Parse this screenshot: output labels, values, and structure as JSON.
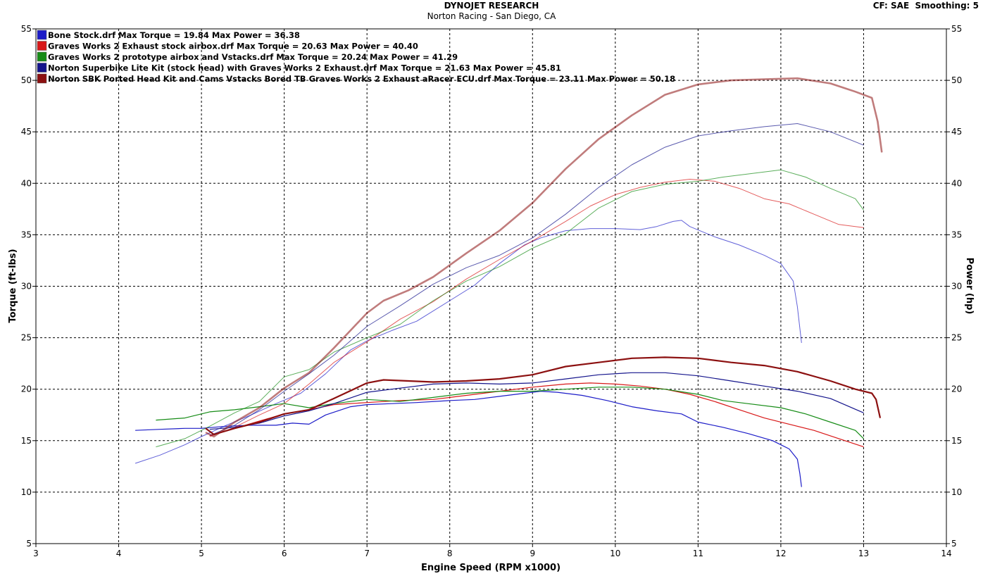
{
  "header": {
    "title": "DYNOJET RESEARCH",
    "subtitle": "Norton Racing - San Diego, CA",
    "cf": "CF: SAE",
    "smoothing": "Smoothing: 5"
  },
  "colors": {
    "blue": "#1c1cc8",
    "red": "#d81818",
    "green": "#168c16",
    "navy": "#14148c",
    "maroon": "#8c1010",
    "plot_bg": "#ffffff",
    "grid": "#000000"
  },
  "chart_data": {
    "type": "line",
    "xlabel": "Engine Speed (RPM x1000)",
    "ylabel": "Torque (ft-lbs)",
    "y2label": "Power (hp)",
    "xlim": [
      3,
      14
    ],
    "ylim": [
      5,
      55
    ],
    "y2lim": [
      5,
      55
    ],
    "xticks": [
      3,
      4,
      5,
      6,
      7,
      8,
      9,
      10,
      11,
      12,
      13,
      14
    ],
    "yticks": [
      5,
      10,
      15,
      20,
      25,
      30,
      35,
      40,
      45,
      50,
      55
    ],
    "grid": true,
    "legend_position": "top-left",
    "legend": [
      "Bone Stock.drf Max Torque = 19.84 Max Power = 36.38",
      "Graves Works 2 Exhaust stock airbox.drf Max Torque = 20.63 Max Power = 40.40",
      "Graves Works 2 prototype airbox and Vstacks.drf Max Torque = 20.24 Max Power = 41.29",
      "Norton Superbike Lite Kit (stock head) with Graves Works 2 Exhaust.drf Max Torque = 21.63 Max Power = 45.81",
      "Norton SBK Ported Head Kit and Cams Vstacks Bored TB Graves Works 2 Exhaust aRacer ECU.drf Max Torque = 23.11 Max Power = 50.18"
    ],
    "series": [
      {
        "name": "Bone Stock.drf",
        "color": "#1c1cc8",
        "torque": [
          [
            4.2,
            16.0
          ],
          [
            4.5,
            16.1
          ],
          [
            4.8,
            16.2
          ],
          [
            5.0,
            16.2
          ],
          [
            5.3,
            16.4
          ],
          [
            5.6,
            16.5
          ],
          [
            5.9,
            16.5
          ],
          [
            6.1,
            16.7
          ],
          [
            6.3,
            16.6
          ],
          [
            6.5,
            17.5
          ],
          [
            6.8,
            18.3
          ],
          [
            7.0,
            18.5
          ],
          [
            7.3,
            18.6
          ],
          [
            7.6,
            18.7
          ],
          [
            8.0,
            18.9
          ],
          [
            8.3,
            19.0
          ],
          [
            8.6,
            19.3
          ],
          [
            8.9,
            19.6
          ],
          [
            9.1,
            19.8
          ],
          [
            9.3,
            19.7
          ],
          [
            9.6,
            19.4
          ],
          [
            9.9,
            18.9
          ],
          [
            10.2,
            18.3
          ],
          [
            10.5,
            17.9
          ],
          [
            10.8,
            17.6
          ],
          [
            11.0,
            16.8
          ],
          [
            11.3,
            16.3
          ],
          [
            11.6,
            15.7
          ],
          [
            11.9,
            15.0
          ],
          [
            12.1,
            14.2
          ],
          [
            12.2,
            13.2
          ],
          [
            12.23,
            11.8
          ],
          [
            12.25,
            10.5
          ]
        ],
        "power": [
          [
            4.2,
            12.8
          ],
          [
            4.5,
            13.6
          ],
          [
            4.8,
            14.6
          ],
          [
            5.0,
            15.4
          ],
          [
            5.3,
            16.5
          ],
          [
            5.6,
            17.5
          ],
          [
            5.9,
            18.6
          ],
          [
            6.2,
            19.6
          ],
          [
            6.5,
            21.5
          ],
          [
            6.8,
            23.8
          ],
          [
            7.0,
            24.7
          ],
          [
            7.3,
            25.7
          ],
          [
            7.6,
            26.6
          ],
          [
            8.0,
            28.6
          ],
          [
            8.3,
            30.1
          ],
          [
            8.6,
            32.2
          ],
          [
            8.9,
            34.0
          ],
          [
            9.1,
            34.7
          ],
          [
            9.4,
            35.4
          ],
          [
            9.7,
            35.6
          ],
          [
            10.0,
            35.6
          ],
          [
            10.3,
            35.5
          ],
          [
            10.5,
            35.8
          ],
          [
            10.7,
            36.3
          ],
          [
            10.8,
            36.4
          ],
          [
            10.9,
            35.8
          ],
          [
            11.2,
            34.8
          ],
          [
            11.5,
            34.0
          ],
          [
            11.8,
            33.0
          ],
          [
            12.0,
            32.2
          ],
          [
            12.15,
            30.5
          ],
          [
            12.2,
            28.0
          ],
          [
            12.25,
            24.5
          ]
        ]
      },
      {
        "name": "Graves Works 2 Exhaust stock airbox.drf",
        "color": "#d81818",
        "torque": [
          [
            5.1,
            15.5
          ],
          [
            5.4,
            16.2
          ],
          [
            5.7,
            16.9
          ],
          [
            6.0,
            17.6
          ],
          [
            6.3,
            18.0
          ],
          [
            6.6,
            18.5
          ],
          [
            7.0,
            18.7
          ],
          [
            7.4,
            18.9
          ],
          [
            7.8,
            19.0
          ],
          [
            8.2,
            19.4
          ],
          [
            8.6,
            19.8
          ],
          [
            9.0,
            20.2
          ],
          [
            9.4,
            20.5
          ],
          [
            9.7,
            20.6
          ],
          [
            10.0,
            20.5
          ],
          [
            10.3,
            20.3
          ],
          [
            10.6,
            20.0
          ],
          [
            10.9,
            19.5
          ],
          [
            11.2,
            18.8
          ],
          [
            11.5,
            18.0
          ],
          [
            11.8,
            17.2
          ],
          [
            12.1,
            16.6
          ],
          [
            12.4,
            16.0
          ],
          [
            12.7,
            15.2
          ],
          [
            13.0,
            14.4
          ]
        ],
        "power": [
          [
            5.1,
            15.4
          ],
          [
            5.4,
            16.3
          ],
          [
            5.7,
            17.5
          ],
          [
            6.0,
            18.6
          ],
          [
            6.3,
            20.5
          ],
          [
            6.6,
            22.6
          ],
          [
            7.0,
            24.6
          ],
          [
            7.4,
            26.8
          ],
          [
            7.8,
            28.5
          ],
          [
            8.2,
            30.7
          ],
          [
            8.6,
            32.6
          ],
          [
            9.0,
            34.4
          ],
          [
            9.4,
            36.3
          ],
          [
            9.7,
            37.8
          ],
          [
            10.0,
            38.9
          ],
          [
            10.3,
            39.6
          ],
          [
            10.6,
            40.1
          ],
          [
            10.9,
            40.4
          ],
          [
            11.2,
            40.2
          ],
          [
            11.5,
            39.5
          ],
          [
            11.8,
            38.5
          ],
          [
            12.1,
            38.0
          ],
          [
            12.4,
            37.0
          ],
          [
            12.7,
            36.0
          ],
          [
            13.0,
            35.7
          ]
        ]
      },
      {
        "name": "Graves Works 2 prototype airbox and Vstacks.drf",
        "color": "#168c16",
        "torque": [
          [
            4.45,
            17.0
          ],
          [
            4.8,
            17.2
          ],
          [
            5.1,
            17.8
          ],
          [
            5.4,
            18.0
          ],
          [
            5.7,
            18.3
          ],
          [
            6.0,
            18.6
          ],
          [
            6.3,
            18.2
          ],
          [
            6.6,
            18.6
          ],
          [
            7.0,
            19.0
          ],
          [
            7.4,
            18.8
          ],
          [
            7.8,
            19.2
          ],
          [
            8.2,
            19.6
          ],
          [
            8.6,
            19.8
          ],
          [
            9.0,
            19.8
          ],
          [
            9.4,
            20.0
          ],
          [
            9.8,
            20.2
          ],
          [
            10.2,
            20.2
          ],
          [
            10.6,
            20.0
          ],
          [
            11.0,
            19.5
          ],
          [
            11.3,
            18.9
          ],
          [
            11.6,
            18.6
          ],
          [
            12.0,
            18.2
          ],
          [
            12.3,
            17.6
          ],
          [
            12.6,
            16.8
          ],
          [
            12.9,
            16.0
          ],
          [
            13.0,
            15.2
          ]
        ],
        "power": [
          [
            4.45,
            14.4
          ],
          [
            4.8,
            15.2
          ],
          [
            5.1,
            16.4
          ],
          [
            5.4,
            17.7
          ],
          [
            5.7,
            18.8
          ],
          [
            6.0,
            21.2
          ],
          [
            6.3,
            21.9
          ],
          [
            6.6,
            23.6
          ],
          [
            7.0,
            25.0
          ],
          [
            7.4,
            26.3
          ],
          [
            7.8,
            28.6
          ],
          [
            8.2,
            30.5
          ],
          [
            8.6,
            31.9
          ],
          [
            9.0,
            33.7
          ],
          [
            9.4,
            35.1
          ],
          [
            9.8,
            37.6
          ],
          [
            10.2,
            39.2
          ],
          [
            10.6,
            39.9
          ],
          [
            11.0,
            40.2
          ],
          [
            11.3,
            40.6
          ],
          [
            11.6,
            40.9
          ],
          [
            12.0,
            41.3
          ],
          [
            12.3,
            40.6
          ],
          [
            12.6,
            39.5
          ],
          [
            12.9,
            38.5
          ],
          [
            13.0,
            37.4
          ]
        ]
      },
      {
        "name": "Norton Superbike Lite Kit (stock head) with Graves Works 2 Exhaust.drf",
        "color": "#14148c",
        "torque": [
          [
            5.1,
            16.1
          ],
          [
            5.4,
            16.3
          ],
          [
            5.7,
            16.7
          ],
          [
            6.0,
            17.4
          ],
          [
            6.3,
            17.9
          ],
          [
            6.6,
            18.6
          ],
          [
            7.0,
            19.7
          ],
          [
            7.4,
            20.1
          ],
          [
            7.8,
            20.5
          ],
          [
            8.2,
            20.6
          ],
          [
            8.6,
            20.5
          ],
          [
            9.0,
            20.6
          ],
          [
            9.4,
            21.0
          ],
          [
            9.8,
            21.4
          ],
          [
            10.2,
            21.6
          ],
          [
            10.6,
            21.6
          ],
          [
            11.0,
            21.3
          ],
          [
            11.4,
            20.8
          ],
          [
            11.8,
            20.3
          ],
          [
            12.2,
            19.8
          ],
          [
            12.6,
            19.1
          ],
          [
            13.0,
            17.7
          ]
        ],
        "power": [
          [
            5.1,
            15.5
          ],
          [
            5.4,
            16.5
          ],
          [
            5.7,
            18.0
          ],
          [
            6.0,
            19.8
          ],
          [
            6.3,
            21.5
          ],
          [
            6.6,
            23.3
          ],
          [
            7.0,
            26.1
          ],
          [
            7.4,
            28.1
          ],
          [
            7.8,
            30.2
          ],
          [
            8.2,
            31.8
          ],
          [
            8.6,
            33.0
          ],
          [
            9.0,
            34.7
          ],
          [
            9.4,
            37.0
          ],
          [
            9.8,
            39.6
          ],
          [
            10.2,
            41.8
          ],
          [
            10.6,
            43.5
          ],
          [
            11.0,
            44.6
          ],
          [
            11.4,
            45.1
          ],
          [
            11.8,
            45.5
          ],
          [
            12.2,
            45.8
          ],
          [
            12.6,
            45.0
          ],
          [
            13.0,
            43.7
          ]
        ]
      },
      {
        "name": "Norton SBK Ported Head Kit and Cams Vstacks Bored TB Graves Works 2 Exhaust aRacer ECU.drf",
        "color": "#8c1010",
        "torque": [
          [
            5.05,
            16.2
          ],
          [
            5.15,
            15.6
          ],
          [
            5.4,
            16.2
          ],
          [
            5.7,
            16.8
          ],
          [
            6.0,
            17.6
          ],
          [
            6.3,
            18.0
          ],
          [
            6.6,
            19.1
          ],
          [
            7.0,
            20.6
          ],
          [
            7.2,
            20.9
          ],
          [
            7.5,
            20.8
          ],
          [
            7.8,
            20.7
          ],
          [
            8.2,
            20.8
          ],
          [
            8.6,
            21.0
          ],
          [
            9.0,
            21.4
          ],
          [
            9.4,
            22.2
          ],
          [
            9.8,
            22.6
          ],
          [
            10.2,
            23.0
          ],
          [
            10.6,
            23.1
          ],
          [
            11.0,
            23.0
          ],
          [
            11.4,
            22.6
          ],
          [
            11.8,
            22.3
          ],
          [
            12.2,
            21.7
          ],
          [
            12.6,
            20.8
          ],
          [
            12.9,
            20.0
          ],
          [
            13.1,
            19.6
          ],
          [
            13.15,
            19.0
          ],
          [
            13.2,
            17.2
          ]
        ],
        "power": [
          [
            5.05,
            15.8
          ],
          [
            5.15,
            15.4
          ],
          [
            5.4,
            16.8
          ],
          [
            5.7,
            18.2
          ],
          [
            6.0,
            20.1
          ],
          [
            6.3,
            21.6
          ],
          [
            6.6,
            24.0
          ],
          [
            7.0,
            27.4
          ],
          [
            7.2,
            28.6
          ],
          [
            7.5,
            29.6
          ],
          [
            7.8,
            30.9
          ],
          [
            8.2,
            33.2
          ],
          [
            8.6,
            35.4
          ],
          [
            9.0,
            38.1
          ],
          [
            9.4,
            41.4
          ],
          [
            9.8,
            44.3
          ],
          [
            10.2,
            46.6
          ],
          [
            10.6,
            48.6
          ],
          [
            11.0,
            49.6
          ],
          [
            11.4,
            50.0
          ],
          [
            11.8,
            50.1
          ],
          [
            12.2,
            50.2
          ],
          [
            12.6,
            49.7
          ],
          [
            12.9,
            48.9
          ],
          [
            13.1,
            48.3
          ],
          [
            13.17,
            46.0
          ],
          [
            13.22,
            43.0
          ]
        ]
      }
    ]
  }
}
